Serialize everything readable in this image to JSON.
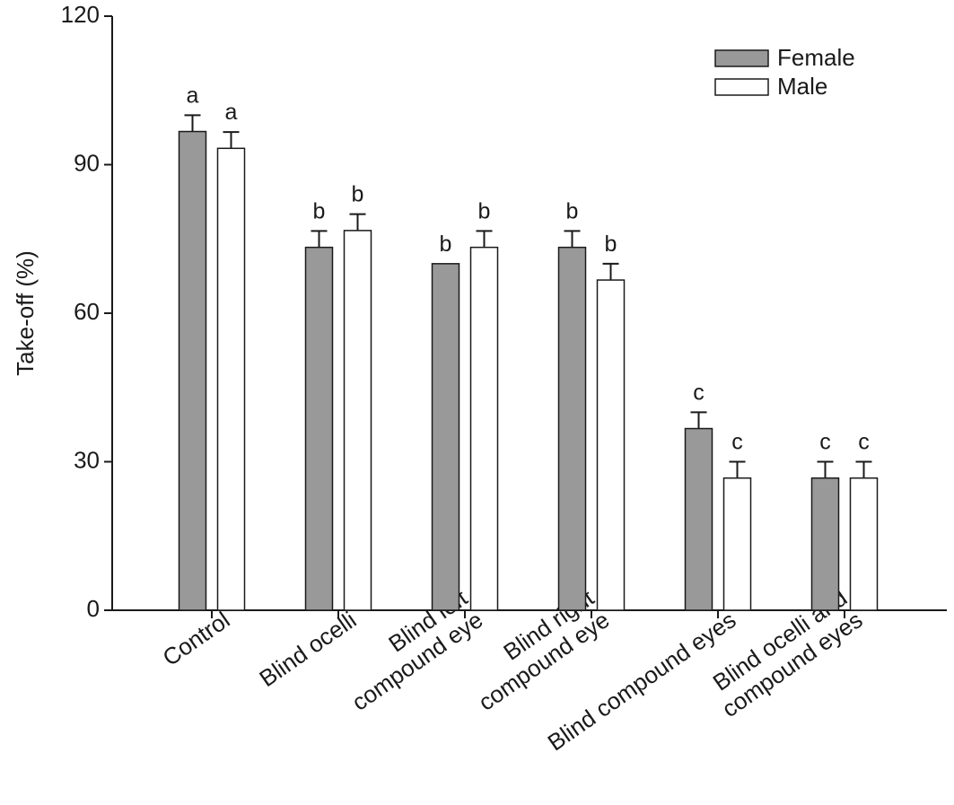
{
  "chart_data": {
    "type": "bar",
    "y_label": "Take-off (%)",
    "categories": [
      [
        "Control"
      ],
      [
        "Blind ocelli"
      ],
      [
        "Blind left",
        "compound eye"
      ],
      [
        "Blind right",
        "compound eye"
      ],
      [
        "Blind compound eyes"
      ],
      [
        "Blind ocelli and",
        "compound eyes"
      ]
    ],
    "series": [
      {
        "name": "Female",
        "color": "#999999",
        "values": [
          96.7,
          73.3,
          70,
          73.3,
          36.7,
          26.7
        ],
        "errors": [
          3.3,
          3.3,
          0,
          3.3,
          3.3,
          3.3
        ],
        "letters": [
          "a",
          "b",
          "b",
          "b",
          "c",
          "c"
        ]
      },
      {
        "name": "Male",
        "color": "#ffffff",
        "values": [
          93.3,
          76.7,
          73.3,
          66.7,
          26.7,
          26.7
        ],
        "errors": [
          3.3,
          3.3,
          3.3,
          3.3,
          3.3,
          3.3
        ],
        "letters": [
          "a",
          "b",
          "b",
          "b",
          "c",
          "c"
        ]
      }
    ],
    "ylim": [
      0,
      120
    ],
    "yticks": [
      0,
      30,
      60,
      90,
      120
    ],
    "grid": false,
    "legend": "top-right"
  }
}
